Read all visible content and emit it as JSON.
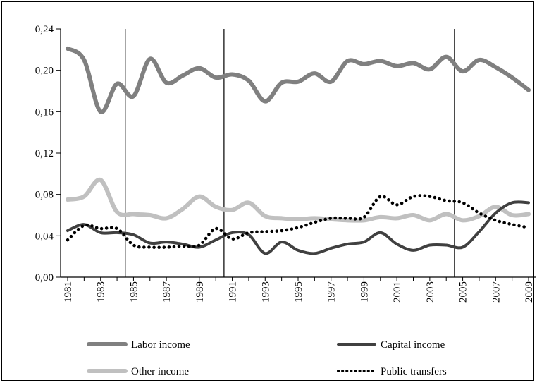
{
  "chart_data": {
    "type": "line",
    "title": "",
    "xlabel": "",
    "ylabel": "",
    "ylim": [
      0,
      0.24
    ],
    "xlim": [
      1981,
      2009
    ],
    "ytick_values": [
      0,
      0.04,
      0.08,
      0.12,
      0.16,
      0.2,
      0.24
    ],
    "ytick_labels": [
      "0,00",
      "0,04",
      "0,08",
      "0,12",
      "0,16",
      "0,20",
      "0,24"
    ],
    "xtick_labels": [
      "1981",
      "1983",
      "1985",
      "1987",
      "1989",
      "1991",
      "1993",
      "1995",
      "1997",
      "1999",
      "2001",
      "2003",
      "2005",
      "2007",
      "2009"
    ],
    "vertical_lines": [
      1984.5,
      1990.5,
      2004.5
    ],
    "grid": false,
    "legend_placement": "bottom",
    "x": [
      1981,
      1982,
      1983,
      1984,
      1985,
      1986,
      1987,
      1988,
      1989,
      1990,
      1991,
      1992,
      1993,
      1994,
      1995,
      1996,
      1997,
      1998,
      1999,
      2000,
      2001,
      2002,
      2003,
      2004,
      2005,
      2006,
      2007,
      2008,
      2009
    ],
    "series": [
      {
        "name": "Labor income",
        "color": "#808080",
        "style": "solid",
        "width": 6,
        "values": [
          0.221,
          0.21,
          0.16,
          0.187,
          0.175,
          0.211,
          0.188,
          0.195,
          0.202,
          0.193,
          0.196,
          0.19,
          0.17,
          0.188,
          0.189,
          0.197,
          0.189,
          0.209,
          0.206,
          0.209,
          0.204,
          0.207,
          0.201,
          0.213,
          0.199,
          0.21,
          0.203,
          0.193,
          0.181
        ]
      },
      {
        "name": "Capital income",
        "color": "#404040",
        "style": "solid",
        "width": 4,
        "values": [
          0.045,
          0.051,
          0.043,
          0.043,
          0.041,
          0.033,
          0.034,
          0.032,
          0.029,
          0.036,
          0.043,
          0.041,
          0.023,
          0.034,
          0.026,
          0.023,
          0.028,
          0.032,
          0.034,
          0.043,
          0.032,
          0.026,
          0.031,
          0.031,
          0.029,
          0.044,
          0.062,
          0.072,
          0.072
        ]
      },
      {
        "name": "Other income",
        "color": "#c0c0c0",
        "style": "solid",
        "width": 6,
        "values": [
          0.075,
          0.078,
          0.094,
          0.063,
          0.061,
          0.06,
          0.057,
          0.066,
          0.078,
          0.068,
          0.065,
          0.072,
          0.059,
          0.057,
          0.056,
          0.057,
          0.056,
          0.055,
          0.055,
          0.058,
          0.057,
          0.06,
          0.055,
          0.061,
          0.055,
          0.059,
          0.068,
          0.06,
          0.061
        ]
      },
      {
        "name": "Public transfers",
        "color": "#000000",
        "style": "dotted",
        "width": 4,
        "values": [
          0.036,
          0.05,
          0.047,
          0.047,
          0.031,
          0.029,
          0.029,
          0.03,
          0.031,
          0.047,
          0.037,
          0.043,
          0.044,
          0.045,
          0.048,
          0.053,
          0.057,
          0.057,
          0.058,
          0.078,
          0.07,
          0.078,
          0.078,
          0.074,
          0.072,
          0.062,
          0.055,
          0.051,
          0.048
        ]
      }
    ]
  }
}
